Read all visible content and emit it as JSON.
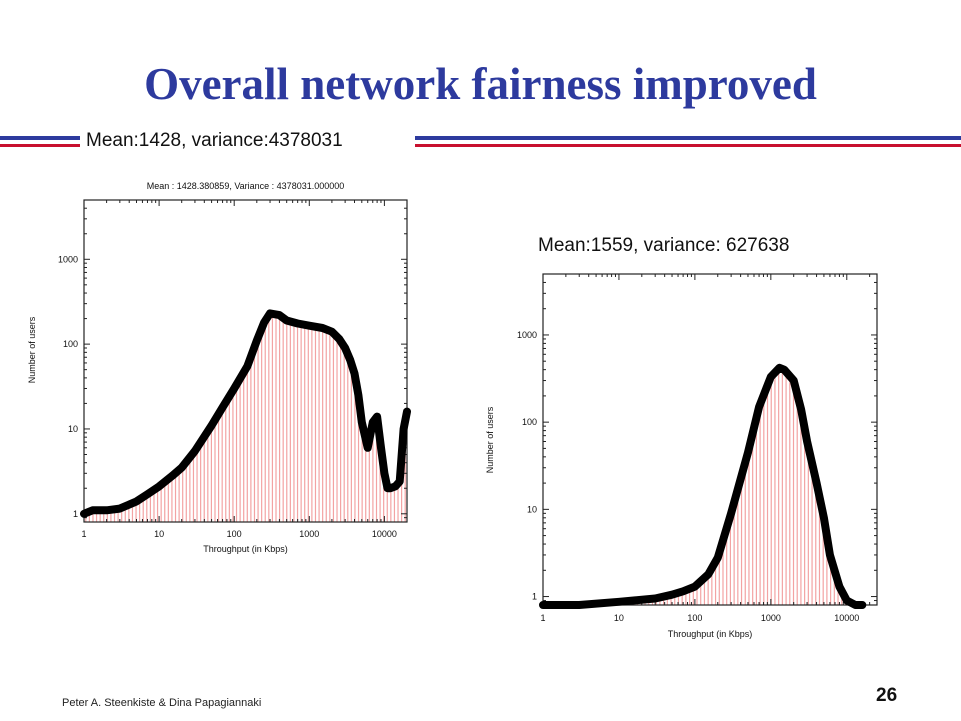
{
  "slide": {
    "title": "Overall network fairness improved",
    "subtitle_left": "Mean:1428, variance:4378031",
    "subtitle_right": "Mean:1559, variance: 627638",
    "footer": "Peter A. Steenkiste & Dina Papagiannaki",
    "page_number": "26"
  },
  "colors": {
    "title": "#2d3a9e",
    "rule_blue": "#2d3a9e",
    "rule_red": "#c8102e",
    "curve": "#000000",
    "bars": "#f3a3a3"
  },
  "chart_data": [
    {
      "type": "line",
      "title": "Mean : 1428.380859, Variance : 4378031.000000",
      "xlabel": "Throughput (in Kbps)",
      "ylabel": "Number of users",
      "x_scale": "log",
      "y_scale": "log",
      "xlim": [
        1,
        20000
      ],
      "ylim": [
        0.8,
        5000
      ],
      "x_ticks": [
        "1",
        "10",
        "100",
        "1000",
        "10000"
      ],
      "y_ticks": [
        "1",
        "10",
        "100",
        "1000"
      ],
      "series": [
        {
          "x": [
            1,
            1.3,
            2,
            3,
            5,
            7,
            10,
            15,
            20,
            30,
            50,
            70,
            100,
            150,
            200,
            250,
            300,
            400,
            500,
            700,
            1000,
            1500,
            2000,
            2500,
            3000,
            3500,
            4000,
            4500,
            5000,
            6000,
            7000,
            8000,
            9000,
            10000,
            11000,
            12000,
            14000,
            16000,
            18000,
            20000
          ],
          "y": [
            1,
            1.1,
            1.1,
            1.15,
            1.4,
            1.7,
            2.1,
            2.8,
            3.5,
            5.5,
            11,
            18,
            30,
            55,
            110,
            180,
            230,
            220,
            190,
            175,
            165,
            155,
            140,
            115,
            90,
            65,
            45,
            25,
            12,
            6,
            12,
            14,
            6,
            3,
            2,
            2,
            2.1,
            2.4,
            10,
            16
          ]
        }
      ]
    },
    {
      "type": "line",
      "title": "",
      "xlabel": "Throughput (in Kbps)",
      "ylabel": "Number of users",
      "x_scale": "log",
      "y_scale": "log",
      "xlim": [
        1,
        25000
      ],
      "ylim": [
        0.8,
        5000
      ],
      "x_ticks": [
        "1",
        "10",
        "100",
        "1000",
        "10000"
      ],
      "y_ticks": [
        "1",
        "10",
        "100",
        "1000"
      ],
      "series": [
        {
          "x": [
            1,
            3,
            10,
            30,
            50,
            70,
            100,
            150,
            200,
            300,
            500,
            700,
            1000,
            1300,
            1500,
            2000,
            2500,
            3000,
            4000,
            5000,
            6000,
            8000,
            10000,
            13000,
            16000
          ],
          "y": [
            0.8,
            0.8,
            0.87,
            0.95,
            1.05,
            1.15,
            1.3,
            1.8,
            2.8,
            9,
            45,
            150,
            330,
            420,
            400,
            300,
            140,
            60,
            20,
            8,
            3,
            1.3,
            0.9,
            0.8,
            0.8
          ]
        }
      ]
    }
  ]
}
